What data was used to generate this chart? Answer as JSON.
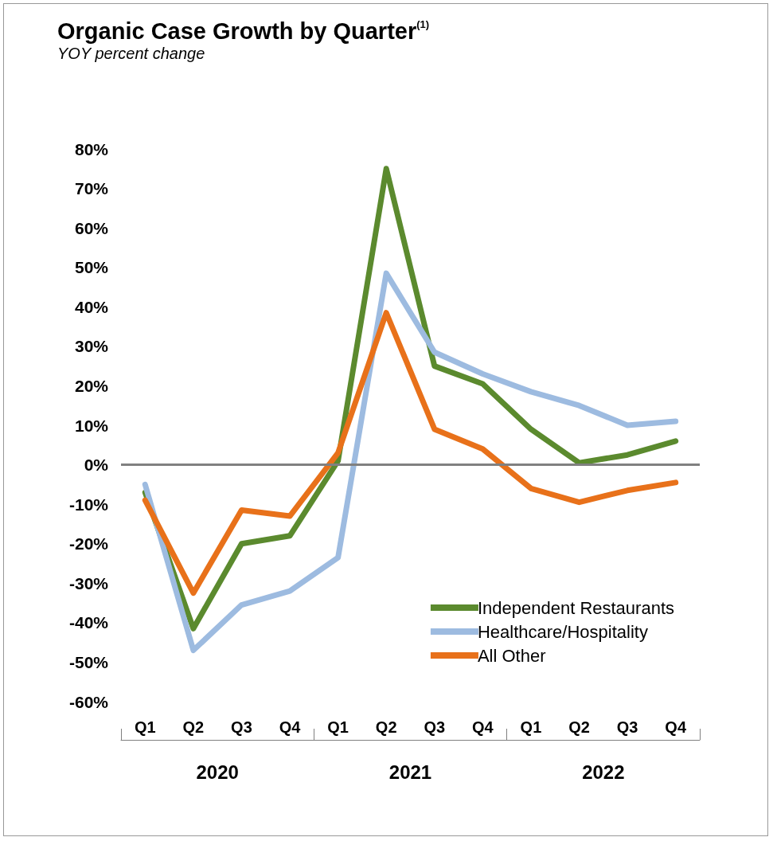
{
  "chart_data": {
    "type": "line",
    "title": "Organic Case Growth by Quarter$^{(1)}$",
    "subtitle": "YOY percent change",
    "categories": [
      "Q1",
      "Q2",
      "Q3",
      "Q4",
      "Q1",
      "Q2",
      "Q3",
      "Q4",
      "Q1",
      "Q2",
      "Q3",
      "Q4"
    ],
    "annotations": [
      "2020",
      "2021",
      "2022"
    ],
    "series": [
      {
        "name": "Independent Restaurants",
        "color": "#5b8a2e",
        "values": [
          -7,
          -41.5,
          -20,
          -18,
          1,
          75,
          25,
          20.5,
          9,
          0.5,
          2.5,
          6
        ]
      },
      {
        "name": "Healthcare/Hospitality",
        "color": "#9dbbe0",
        "values": [
          -5,
          -47,
          -35.5,
          -32,
          -23.5,
          48.5,
          28.5,
          23,
          18.5,
          15,
          10,
          11
        ]
      },
      {
        "name": "All Other",
        "color": "#e8711a",
        "values": [
          -9,
          -32.5,
          -11.5,
          -13,
          3,
          38.5,
          9,
          4,
          -6,
          -9.5,
          -6.5,
          -4.5
        ]
      }
    ],
    "ylim": [
      -60,
      80
    ],
    "yticks": [
      {
        "value": -60,
        "label": "-60%"
      },
      {
        "value": -50,
        "label": "-50%"
      },
      {
        "value": -40,
        "label": "-40%"
      },
      {
        "value": -30,
        "label": "-30%"
      },
      {
        "value": -20,
        "label": "-20%"
      },
      {
        "value": -10,
        "label": "-10%"
      },
      {
        "value": 0,
        "label": "0%"
      },
      {
        "value": 10,
        "label": "10%"
      },
      {
        "value": 20,
        "label": "20%"
      },
      {
        "value": 30,
        "label": "30%"
      },
      {
        "value": 40,
        "label": "40%"
      },
      {
        "value": 50,
        "label": "50%"
      },
      {
        "value": 60,
        "label": "60%"
      },
      {
        "value": 70,
        "label": "70%"
      },
      {
        "value": 80,
        "label": "80%"
      }
    ],
    "ref_lines": [
      {
        "axis": "y",
        "value": 0,
        "color": "#808080"
      }
    ],
    "grid": false,
    "legend": "bottom right",
    "marker": "none",
    "line_style": "solid"
  }
}
